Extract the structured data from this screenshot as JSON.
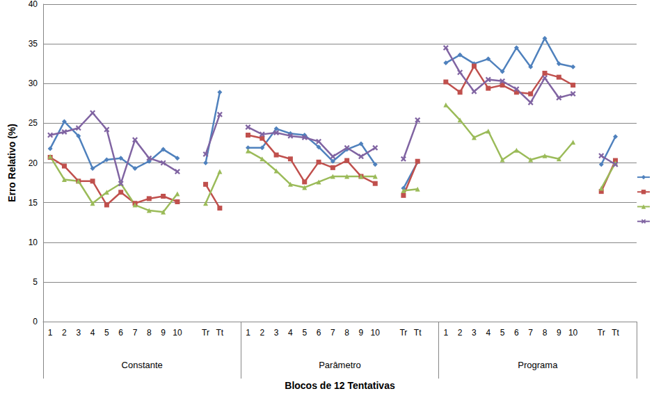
{
  "chart_data": {
    "type": "line",
    "x_label": "Blocos de 12 Tentativas",
    "y_label": "Erro Relativo (%)",
    "groups": [
      "Constante",
      "Parâmetro",
      "Programa"
    ],
    "categories": [
      "1",
      "2",
      "3",
      "4",
      "5",
      "6",
      "7",
      "8",
      "9",
      "10",
      null,
      "Tr",
      "Tt",
      null,
      "1",
      "2",
      "3",
      "4",
      "5",
      "6",
      "7",
      "8",
      "9",
      "10",
      null,
      "Tr",
      "Tt",
      null,
      "1",
      "2",
      "3",
      "4",
      "5",
      "6",
      "7",
      "8",
      "9",
      "10",
      null,
      "Tr",
      "Tt",
      null
    ],
    "ylim": [
      0,
      40
    ],
    "yticks": [
      0,
      5,
      10,
      15,
      20,
      25,
      30,
      35,
      40
    ],
    "grid": true,
    "legend": "right",
    "series": [
      {
        "color": "#4F81BD",
        "marker": "diamond",
        "line_style": "solid",
        "values": [
          21.8,
          25.2,
          23.4,
          19.3,
          20.4,
          20.6,
          19.3,
          20.2,
          21.7,
          20.6,
          null,
          20.0,
          28.9,
          null,
          21.9,
          21.9,
          24.3,
          23.7,
          23.5,
          22.0,
          20.2,
          21.7,
          22.4,
          19.8,
          null,
          16.8,
          20.1,
          null,
          32.6,
          33.6,
          32.5,
          33.1,
          31.5,
          34.5,
          32.1,
          35.7,
          32.5,
          32.1,
          null,
          19.8,
          23.3,
          null
        ]
      },
      {
        "color": "#C0504D",
        "marker": "square",
        "line_style": "solid",
        "values": [
          20.7,
          19.6,
          17.7,
          17.7,
          14.7,
          16.3,
          14.9,
          15.5,
          15.8,
          15.1,
          null,
          17.3,
          14.3,
          null,
          23.5,
          23.1,
          21.0,
          20.5,
          17.6,
          20.1,
          19.4,
          20.3,
          18.3,
          17.4,
          null,
          15.9,
          20.2,
          null,
          30.2,
          28.9,
          32.2,
          29.4,
          29.8,
          28.9,
          28.7,
          31.3,
          30.8,
          29.8,
          null,
          16.4,
          20.3,
          null
        ]
      },
      {
        "color": "#9BBB59",
        "marker": "triangle",
        "line_style": "solid",
        "values": [
          20.8,
          17.9,
          17.7,
          14.9,
          16.3,
          17.4,
          14.7,
          14.0,
          13.8,
          16.1,
          null,
          14.9,
          18.9,
          null,
          21.5,
          20.5,
          19.0,
          17.3,
          16.9,
          17.6,
          18.3,
          18.3,
          18.3,
          18.3,
          null,
          16.5,
          16.7,
          null,
          27.3,
          25.4,
          23.2,
          24.0,
          20.4,
          21.6,
          20.4,
          20.9,
          20.5,
          22.6,
          null,
          16.8,
          20.0,
          null
        ]
      },
      {
        "color": "#8064A2",
        "marker": "x",
        "line_style": "solid",
        "values": [
          23.5,
          23.9,
          24.4,
          26.3,
          24.2,
          17.4,
          22.9,
          20.6,
          20.0,
          18.9,
          null,
          21.1,
          26.1,
          null,
          24.5,
          23.6,
          23.8,
          23.4,
          23.2,
          22.7,
          20.8,
          21.9,
          20.8,
          21.9,
          null,
          20.5,
          25.4,
          null,
          34.5,
          31.4,
          29.0,
          30.5,
          30.3,
          29.3,
          27.6,
          30.7,
          28.2,
          28.7,
          null,
          20.9,
          19.8,
          null
        ]
      }
    ]
  }
}
